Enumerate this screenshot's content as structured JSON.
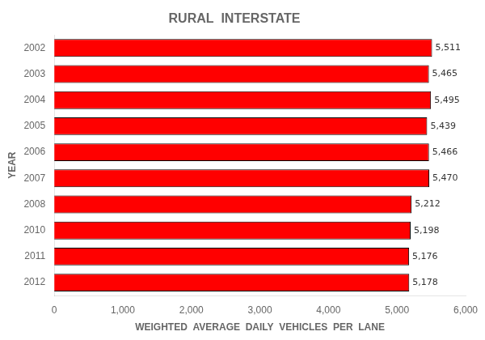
{
  "chart_data": {
    "type": "bar",
    "orientation": "horizontal",
    "title": "RURAL  INTERSTATE",
    "xlabel": "WEIGHTED  AVERAGE  DAILY  VEHICLES  PER  LANE",
    "ylabel": "YEAR",
    "categories": [
      "2002",
      "2003",
      "2004",
      "2005",
      "2006",
      "2007",
      "2008",
      "2010",
      "2011",
      "2012"
    ],
    "values": [
      5511,
      5465,
      5495,
      5439,
      5466,
      5470,
      5212,
      5198,
      5176,
      5178
    ],
    "value_labels": [
      "5,511",
      "5,465",
      "5,495",
      "5,439",
      "5,466",
      "5,470",
      "5,212",
      "5,198",
      "5,176",
      "5,178"
    ],
    "data_labels": true,
    "color": "#FF0000",
    "xlim": [
      0,
      6000
    ],
    "xticks": [
      0,
      {
        "value": 1000,
        "label": "1,000"
      },
      {
        "value": 2000,
        "label": "2,000"
      },
      {
        "value": 3000,
        "label": "3,000"
      },
      {
        "value": 4000,
        "label": "4,000"
      },
      {
        "value": 5000,
        "label": "5,000"
      },
      {
        "value": 6000,
        "label": "6,000"
      }
    ],
    "grid": false
  }
}
